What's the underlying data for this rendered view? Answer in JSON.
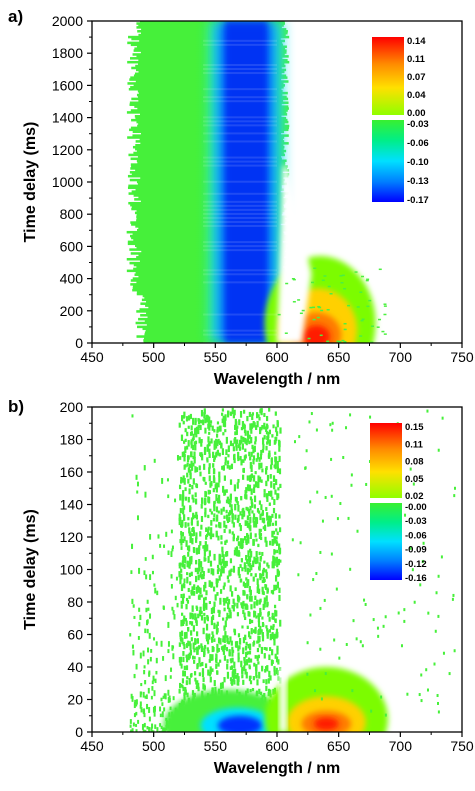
{
  "chart_data": [
    {
      "type": "heatmap",
      "panel_label": "a)",
      "xlabel": "Wavelength / nm",
      "ylabel": "Time delay (ms)",
      "xlim": [
        450,
        750
      ],
      "ylim": [
        0,
        2000
      ],
      "x_ticks": [
        "450",
        "500",
        "550",
        "600",
        "650",
        "700",
        "750"
      ],
      "y_ticks": [
        "0",
        "200",
        "400",
        "600",
        "800",
        "1000",
        "1200",
        "1400",
        "1600",
        "1800",
        "2000"
      ],
      "colorbar_positive": [
        "0.14",
        "0.11",
        "0.07",
        "0.04",
        "0.00"
      ],
      "colorbar_negative": [
        "-0.03",
        "-0.06",
        "-0.10",
        "-0.13",
        "-0.17"
      ],
      "colors": {
        "max": "#ff0000",
        "mid_pos": "#ffd000",
        "zero": "#7cfc00",
        "neg_low": "#00e080",
        "neg_mid": "#00c8ff",
        "min": "#0000ff"
      },
      "features": [
        {
          "name": "bleach",
          "center_nm": 575,
          "time_range_ms": [
            0,
            2000
          ],
          "min_value": -0.17
        },
        {
          "name": "absorption",
          "center_nm": 635,
          "time_range_ms": [
            0,
            500
          ],
          "max_value": 0.14
        }
      ]
    },
    {
      "type": "heatmap",
      "panel_label": "b)",
      "xlabel": "Wavelength / nm",
      "ylabel": "Time delay (ms)",
      "xlim": [
        450,
        750
      ],
      "ylim": [
        0,
        200
      ],
      "x_ticks": [
        "450",
        "500",
        "550",
        "600",
        "650",
        "700",
        "750"
      ],
      "y_ticks": [
        "0",
        "20",
        "40",
        "60",
        "80",
        "100",
        "120",
        "140",
        "160",
        "180",
        "200"
      ],
      "colorbar_positive": [
        "0.15",
        "0.11",
        "0.08",
        "0.05",
        "0.02"
      ],
      "colorbar_negative": [
        "-0.00",
        "-0.03",
        "-0.06",
        "-0.09",
        "-0.12",
        "-0.16"
      ],
      "colors": {
        "max": "#ff0000",
        "mid_pos": "#ffd000",
        "zero": "#7cfc00",
        "neg_low": "#00e080",
        "neg_mid": "#00c8ff",
        "min": "#0000ff"
      },
      "features": [
        {
          "name": "bleach",
          "center_nm": 570,
          "time_range_ms": [
            0,
            200
          ],
          "min_value": -0.16
        },
        {
          "name": "absorption",
          "center_nm": 640,
          "time_range_ms": [
            0,
            40
          ],
          "max_value": 0.15
        }
      ]
    }
  ]
}
